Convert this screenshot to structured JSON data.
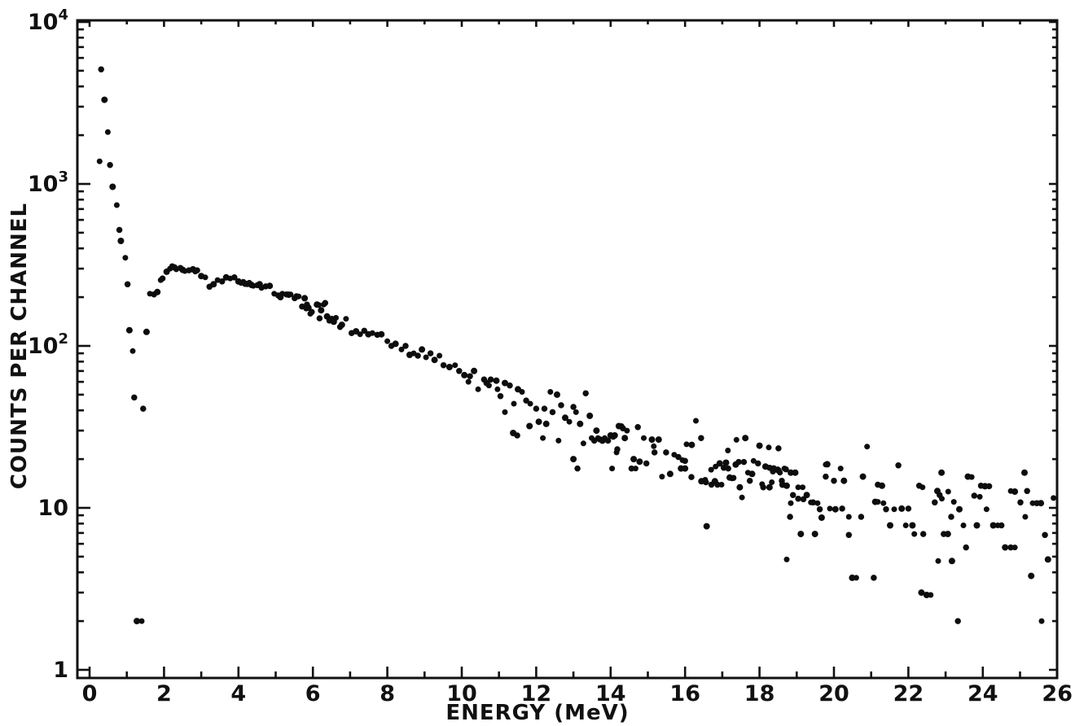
{
  "figure": {
    "background": "#ffffff",
    "ink_color": "#111111"
  },
  "chart_data": {
    "type": "scatter",
    "title": "",
    "xlabel": "ENERGY (MeV)",
    "ylabel": "COUNTS PER CHANNEL",
    "grid": false,
    "legend": null,
    "marker": {
      "shape": "dot",
      "color": "#0d0d0d"
    },
    "x_axis": {
      "min": 0,
      "max": 26,
      "major_tick_step": 2,
      "minor_tick_step": 1,
      "major_tick_values": [
        0,
        2,
        4,
        6,
        8,
        10,
        12,
        14,
        16,
        18,
        20,
        22,
        24,
        26
      ],
      "tick_labels": [
        "0",
        "2",
        "4",
        "6",
        "8",
        "10",
        "12",
        "14",
        "16",
        "18",
        "20",
        "22",
        "24",
        "26"
      ]
    },
    "y_axis": {
      "scale": "log",
      "min": 1,
      "max": 10000,
      "ticks": [
        {
          "base": "10",
          "exp": "4",
          "value": 10000
        },
        {
          "base": "10",
          "exp": "3",
          "value": 1000
        },
        {
          "base": "10",
          "exp": "2",
          "value": 100
        },
        {
          "base": "10",
          "exp": "",
          "value": 10
        },
        {
          "base": "1",
          "exp": "",
          "value": 1
        }
      ],
      "minor_ticks_per_decade": [
        2,
        3,
        4,
        5,
        6,
        7,
        8,
        9
      ]
    },
    "points": [
      [
        0.27,
        1380
      ],
      [
        0.31,
        5100
      ],
      [
        0.4,
        3310
      ],
      [
        0.49,
        2090
      ],
      [
        0.55,
        1310
      ],
      [
        0.62,
        960
      ],
      [
        0.73,
        740
      ],
      [
        0.8,
        520
      ],
      [
        0.84,
        445
      ],
      [
        0.96,
        350
      ],
      [
        1.02,
        240
      ],
      [
        1.07,
        125
      ],
      [
        1.16,
        93
      ],
      [
        1.2,
        48
      ],
      [
        1.27,
        2
      ],
      [
        1.4,
        2
      ],
      [
        1.44,
        41
      ],
      [
        1.53,
        122
      ],
      [
        1.62,
        210
      ],
      [
        1.73,
        208
      ],
      [
        1.82,
        215
      ],
      [
        1.91,
        255
      ],
      [
        1.96,
        261
      ],
      [
        2.07,
        287
      ],
      [
        2.16,
        300
      ],
      [
        2.22,
        310
      ],
      [
        2.28,
        305
      ],
      [
        2.33,
        297
      ],
      [
        2.44,
        303
      ],
      [
        2.5,
        295
      ],
      [
        2.56,
        290
      ],
      [
        2.67,
        293
      ],
      [
        2.78,
        297
      ],
      [
        2.84,
        288
      ],
      [
        2.89,
        293
      ],
      [
        3.0,
        270
      ],
      [
        3.11,
        265
      ],
      [
        3.22,
        232
      ],
      [
        3.33,
        240
      ],
      [
        3.44,
        255
      ],
      [
        3.56,
        250
      ],
      [
        3.67,
        265
      ],
      [
        3.78,
        261
      ],
      [
        3.89,
        265
      ],
      [
        4.0,
        250
      ],
      [
        4.07,
        245
      ],
      [
        4.13,
        248
      ],
      [
        4.18,
        242
      ],
      [
        4.24,
        240
      ],
      [
        4.29,
        245
      ],
      [
        4.35,
        238
      ],
      [
        4.4,
        235
      ],
      [
        4.51,
        237
      ],
      [
        4.57,
        240
      ],
      [
        4.62,
        228
      ],
      [
        4.73,
        233
      ],
      [
        4.84,
        235
      ],
      [
        4.96,
        210
      ],
      [
        5.07,
        205
      ],
      [
        5.13,
        200
      ],
      [
        5.18,
        210
      ],
      [
        5.29,
        208
      ],
      [
        5.35,
        207
      ],
      [
        5.4,
        208
      ],
      [
        5.51,
        197
      ],
      [
        5.56,
        202
      ],
      [
        5.62,
        202
      ],
      [
        5.71,
        175
      ],
      [
        5.78,
        197
      ],
      [
        5.82,
        170
      ],
      [
        5.84,
        180
      ],
      [
        5.88,
        172
      ],
      [
        5.93,
        158
      ],
      [
        5.97,
        162
      ],
      [
        6.11,
        180
      ],
      [
        6.16,
        179
      ],
      [
        6.18,
        148
      ],
      [
        6.22,
        166
      ],
      [
        6.29,
        180
      ],
      [
        6.33,
        184
      ],
      [
        6.38,
        152
      ],
      [
        6.44,
        143
      ],
      [
        6.51,
        147
      ],
      [
        6.56,
        141
      ],
      [
        6.62,
        149
      ],
      [
        6.73,
        131
      ],
      [
        6.78,
        135
      ],
      [
        6.89,
        147
      ],
      [
        7.04,
        120
      ],
      [
        7.16,
        123
      ],
      [
        7.27,
        118
      ],
      [
        7.38,
        124
      ],
      [
        7.49,
        118
      ],
      [
        7.6,
        120
      ],
      [
        7.73,
        117
      ],
      [
        7.84,
        118
      ],
      [
        8.0,
        107
      ],
      [
        8.11,
        100
      ],
      [
        8.22,
        103
      ],
      [
        8.38,
        95
      ],
      [
        8.49,
        100
      ],
      [
        8.6,
        88
      ],
      [
        8.71,
        90
      ],
      [
        8.82,
        87
      ],
      [
        8.93,
        95
      ],
      [
        9.04,
        85
      ],
      [
        9.16,
        90
      ],
      [
        9.27,
        82
      ],
      [
        9.4,
        87
      ],
      [
        9.51,
        76
      ],
      [
        9.67,
        74
      ],
      [
        9.82,
        76
      ],
      [
        9.93,
        70
      ],
      [
        10.07,
        66
      ],
      [
        10.18,
        60
      ],
      [
        10.22,
        65
      ],
      [
        10.33,
        70
      ],
      [
        10.44,
        54
      ],
      [
        10.6,
        62
      ],
      [
        10.67,
        59
      ],
      [
        10.73,
        57
      ],
      [
        10.78,
        62
      ],
      [
        10.93,
        61
      ],
      [
        10.96,
        54
      ],
      [
        11.04,
        49
      ],
      [
        11.16,
        59
      ],
      [
        11.16,
        39
      ],
      [
        11.29,
        57
      ],
      [
        11.38,
        29
      ],
      [
        11.4,
        44
      ],
      [
        11.49,
        28
      ],
      [
        11.51,
        54
      ],
      [
        11.62,
        52
      ],
      [
        11.73,
        46
      ],
      [
        11.82,
        32
      ],
      [
        11.84,
        44
      ],
      [
        12.0,
        41
      ],
      [
        12.07,
        34
      ],
      [
        12.18,
        27
      ],
      [
        12.22,
        41
      ],
      [
        12.27,
        33
      ],
      [
        12.38,
        52
      ],
      [
        12.44,
        39
      ],
      [
        12.56,
        50
      ],
      [
        12.6,
        26
      ],
      [
        12.67,
        43
      ],
      [
        12.78,
        36
      ],
      [
        12.89,
        34
      ],
      [
        13.0,
        42
      ],
      [
        13.0,
        20
      ],
      [
        13.07,
        39
      ],
      [
        13.11,
        17.5
      ],
      [
        13.18,
        33
      ],
      [
        13.27,
        25
      ],
      [
        13.33,
        51
      ],
      [
        13.44,
        37
      ],
      [
        13.49,
        27
      ],
      [
        13.56,
        26
      ],
      [
        13.62,
        30
      ],
      [
        13.66,
        27
      ],
      [
        13.71,
        26.5
      ],
      [
        13.78,
        26
      ],
      [
        13.84,
        27
      ],
      [
        13.93,
        26
      ],
      [
        14.0,
        28
      ],
      [
        14.04,
        17.5
      ],
      [
        14.07,
        27.5
      ],
      [
        14.11,
        28
      ],
      [
        14.16,
        22
      ],
      [
        14.18,
        23
      ],
      [
        14.22,
        32
      ],
      [
        14.29,
        32
      ],
      [
        14.33,
        31
      ],
      [
        14.38,
        27
      ],
      [
        14.44,
        30
      ],
      [
        14.56,
        17.5
      ],
      [
        14.62,
        20
      ],
      [
        14.67,
        17.5
      ],
      [
        14.73,
        31.5
      ],
      [
        14.78,
        19.3
      ],
      [
        14.89,
        27
      ],
      [
        14.96,
        18.8
      ],
      [
        15.11,
        26.4
      ],
      [
        15.16,
        24
      ],
      [
        15.18,
        22
      ],
      [
        15.29,
        26.4
      ],
      [
        15.38,
        15.6
      ],
      [
        15.49,
        22
      ],
      [
        15.6,
        16.2
      ],
      [
        15.71,
        21.3
      ],
      [
        15.82,
        20.6
      ],
      [
        15.89,
        17.5
      ],
      [
        15.93,
        19.7
      ],
      [
        16.0,
        19.5
      ],
      [
        16.0,
        17.5
      ],
      [
        16.04,
        24.7
      ],
      [
        16.17,
        15.5
      ],
      [
        16.18,
        24.5
      ],
      [
        16.29,
        34.5
      ],
      [
        16.43,
        27
      ],
      [
        16.44,
        14.6
      ],
      [
        16.54,
        14.9
      ],
      [
        16.56,
        14.4
      ],
      [
        16.58,
        7.7
      ],
      [
        16.7,
        17.2
      ],
      [
        16.71,
        13.9
      ],
      [
        16.8,
        14.6
      ],
      [
        16.82,
        18.0
      ],
      [
        16.87,
        13.9
      ],
      [
        16.93,
        18.8
      ],
      [
        16.98,
        13.9
      ],
      [
        17.04,
        17.7
      ],
      [
        17.1,
        19.0
      ],
      [
        17.15,
        22.6
      ],
      [
        17.16,
        17.5
      ],
      [
        17.2,
        15.4
      ],
      [
        17.26,
        15.2
      ],
      [
        17.3,
        15.3
      ],
      [
        17.36,
        18.5
      ],
      [
        17.38,
        26.3
      ],
      [
        17.44,
        19.2
      ],
      [
        17.47,
        13.4
      ],
      [
        17.53,
        11.6
      ],
      [
        17.58,
        19.2
      ],
      [
        17.62,
        27
      ],
      [
        17.69,
        16.5
      ],
      [
        17.74,
        14.7
      ],
      [
        17.8,
        16.2
      ],
      [
        17.84,
        19.5
      ],
      [
        17.96,
        18.8
      ],
      [
        18.0,
        24.2
      ],
      [
        18.07,
        14.0
      ],
      [
        18.1,
        13.4
      ],
      [
        18.16,
        18.0
      ],
      [
        18.25,
        23.6
      ],
      [
        18.27,
        17.7
      ],
      [
        18.27,
        13.4
      ],
      [
        18.33,
        14.4
      ],
      [
        18.36,
        16.8
      ],
      [
        18.38,
        17.5
      ],
      [
        18.49,
        17.3
      ],
      [
        18.51,
        23.3
      ],
      [
        18.51,
        17.0
      ],
      [
        18.55,
        16.5
      ],
      [
        18.6,
        14.7
      ],
      [
        18.62,
        13.9
      ],
      [
        18.67,
        17.5
      ],
      [
        18.71,
        17.3
      ],
      [
        18.73,
        13.7
      ],
      [
        18.73,
        4.8
      ],
      [
        18.82,
        8.8
      ],
      [
        18.84,
        16.5
      ],
      [
        18.84,
        10.7
      ],
      [
        18.9,
        12.0
      ],
      [
        18.96,
        16.5
      ],
      [
        19.04,
        13.4
      ],
      [
        19.04,
        11.4
      ],
      [
        19.11,
        6.9
      ],
      [
        19.16,
        13.4
      ],
      [
        19.18,
        11.3
      ],
      [
        19.27,
        12.0
      ],
      [
        19.38,
        10.8
      ],
      [
        19.44,
        10.8
      ],
      [
        19.49,
        6.9
      ],
      [
        19.56,
        10.7
      ],
      [
        19.62,
        9.8
      ],
      [
        19.67,
        8.7
      ],
      [
        19.78,
        18.5
      ],
      [
        19.78,
        15.6
      ],
      [
        19.82,
        18.6
      ],
      [
        19.89,
        9.9
      ],
      [
        20.0,
        14.7
      ],
      [
        20.04,
        9.8
      ],
      [
        20.18,
        17.5
      ],
      [
        20.22,
        9.9
      ],
      [
        20.27,
        14.7
      ],
      [
        20.4,
        8.8
      ],
      [
        20.4,
        6.8
      ],
      [
        20.49,
        3.7
      ],
      [
        20.6,
        3.7
      ],
      [
        20.73,
        8.8
      ],
      [
        20.78,
        15.6
      ],
      [
        20.89,
        23.9
      ],
      [
        21.07,
        3.7
      ],
      [
        21.11,
        10.9
      ],
      [
        21.18,
        10.9
      ],
      [
        21.18,
        13.9
      ],
      [
        21.29,
        13.7
      ],
      [
        21.33,
        10.7
      ],
      [
        21.4,
        9.8
      ],
      [
        21.51,
        7.8
      ],
      [
        21.62,
        9.8
      ],
      [
        21.73,
        18.3
      ],
      [
        21.82,
        9.9
      ],
      [
        21.93,
        7.8
      ],
      [
        22.0,
        9.9
      ],
      [
        22.11,
        7.8
      ],
      [
        22.16,
        6.9
      ],
      [
        22.29,
        13.7
      ],
      [
        22.35,
        3.0
      ],
      [
        22.38,
        13.4
      ],
      [
        22.4,
        6.9
      ],
      [
        22.49,
        2.9
      ],
      [
        22.6,
        2.9
      ],
      [
        22.71,
        10.8
      ],
      [
        22.78,
        12.7
      ],
      [
        22.8,
        4.7
      ],
      [
        22.84,
        12.0
      ],
      [
        22.89,
        16.5
      ],
      [
        22.9,
        11.4
      ],
      [
        22.95,
        6.9
      ],
      [
        23.06,
        6.9
      ],
      [
        23.07,
        12.6
      ],
      [
        23.15,
        8.8
      ],
      [
        23.17,
        4.7
      ],
      [
        23.22,
        10.9
      ],
      [
        23.33,
        2.0
      ],
      [
        23.37,
        9.8
      ],
      [
        23.48,
        7.8
      ],
      [
        23.55,
        5.7
      ],
      [
        23.6,
        15.6
      ],
      [
        23.7,
        15.5
      ],
      [
        23.77,
        11.9
      ],
      [
        23.84,
        7.8
      ],
      [
        23.92,
        11.7
      ],
      [
        23.95,
        13.7
      ],
      [
        24.06,
        13.6
      ],
      [
        24.1,
        9.8
      ],
      [
        24.17,
        13.6
      ],
      [
        24.28,
        7.8
      ],
      [
        24.4,
        7.8
      ],
      [
        24.5,
        7.8
      ],
      [
        24.6,
        5.7
      ],
      [
        24.75,
        12.7
      ],
      [
        24.75,
        5.7
      ],
      [
        24.86,
        12.6
      ],
      [
        24.86,
        5.7
      ],
      [
        25.01,
        10.8
      ],
      [
        25.12,
        16.5
      ],
      [
        25.14,
        8.8
      ],
      [
        25.19,
        12.7
      ],
      [
        25.3,
        3.8
      ],
      [
        25.34,
        10.7
      ],
      [
        25.45,
        10.7
      ],
      [
        25.56,
        10.7
      ],
      [
        25.58,
        2.0
      ],
      [
        25.67,
        6.8
      ],
      [
        25.75,
        4.8
      ],
      [
        25.9,
        11.5
      ]
    ]
  }
}
